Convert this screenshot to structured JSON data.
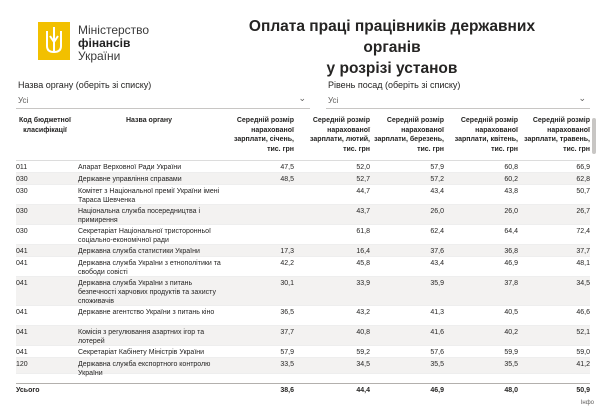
{
  "logo": {
    "line1": "Міністерство",
    "line2": "фінансів",
    "line3": "України"
  },
  "title": {
    "line1": "Оплата праці працівників державних органів",
    "line2": "у розрізі установ"
  },
  "filters": [
    {
      "label": "Назва органу (оберіть зі списку)",
      "value": "Усі"
    },
    {
      "label": "Рівень посад (оберіть зі списку)",
      "value": "Усі"
    }
  ],
  "table": {
    "headers": [
      "Код бюджетної класифікації",
      "Назва органу",
      "Середній розмір нарахованої зарплати, січень, тис. грн",
      "Середній розмір нарахованої зарплати, лютий, тис. грн",
      "Середній розмір нарахованої зарплати, березень, тис. грн",
      "Середній розмір нарахованої зарплати, квітень, тис. грн",
      "Середній розмір нарахованої зарплати, травень, тис. грн"
    ],
    "rows": [
      {
        "code": "011",
        "name": "Апарат Верховної Ради України",
        "jan": "47,5",
        "feb": "52,0",
        "mar": "57,9",
        "apr": "60,8",
        "may": "66,9"
      },
      {
        "code": "030",
        "name": "Державне управління справами",
        "jan": "48,5",
        "feb": "52,7",
        "mar": "57,2",
        "apr": "60,2",
        "may": "62,8"
      },
      {
        "code": "030",
        "name": "Комітет з Національної премії України імені Тараса Шевченка",
        "jan": "",
        "feb": "44,7",
        "mar": "43,4",
        "apr": "43,8",
        "may": "50,7"
      },
      {
        "code": "030",
        "name": "Національна служба посередництва і примирення",
        "jan": "",
        "feb": "43,7",
        "mar": "26,0",
        "apr": "26,0",
        "may": "26,7"
      },
      {
        "code": "030",
        "name": "Секретаріат Національної тристоронньої соціально-економічної ради",
        "jan": "",
        "feb": "61,8",
        "mar": "62,4",
        "apr": "64,4",
        "may": "72,4"
      },
      {
        "code": "041",
        "name": "Державна служба статистики України",
        "jan": "17,3",
        "feb": "16,4",
        "mar": "37,6",
        "apr": "36,8",
        "may": "37,7"
      },
      {
        "code": "041",
        "name": "Державна служба України з етнополітики та свободи совісті",
        "jan": "42,2",
        "feb": "45,8",
        "mar": "43,4",
        "apr": "46,9",
        "may": "48,1"
      },
      {
        "code": "041",
        "name": "Державна служба України з питань безпечності харчових продуктів та захисту споживачів",
        "jan": "30,1",
        "feb": "33,9",
        "mar": "35,9",
        "apr": "37,8",
        "may": "34,5"
      },
      {
        "code": "041",
        "name": "Державне агентство України з питань кіно",
        "jan": "36,5",
        "feb": "43,2",
        "mar": "41,3",
        "apr": "40,5",
        "may": "46,6"
      },
      {
        "code": "041",
        "name": "Комісія з регулювання азартних ігор та лотерей",
        "jan": "37,7",
        "feb": "40,8",
        "mar": "41,6",
        "apr": "40,2",
        "may": "52,1"
      },
      {
        "code": "041",
        "name": "Секретаріат Кабінету Міністрів України",
        "jan": "57,9",
        "feb": "59,2",
        "mar": "57,6",
        "apr": "59,9",
        "may": "59,0"
      },
      {
        "code": "120",
        "name": "Державна служба експортного контролю України",
        "jan": "33,5",
        "feb": "34,5",
        "mar": "35,5",
        "apr": "35,5",
        "may": "41,2"
      }
    ],
    "total": {
      "label": "Усього",
      "jan": "38,6",
      "feb": "44,4",
      "mar": "46,9",
      "apr": "48,0",
      "may": "50,9"
    }
  },
  "footer": {
    "info": "Інфо"
  },
  "colors": {
    "logo": "#f2c000",
    "alt_row": "#f3f2f1"
  }
}
